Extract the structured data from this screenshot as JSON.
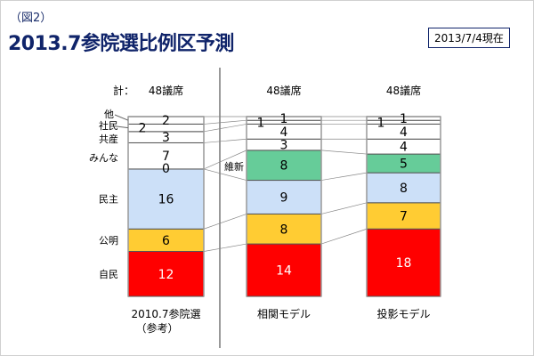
{
  "header": {
    "figure_label": "（図2）",
    "title": "2013.7参院選比例区予測",
    "as_of": "2013/7/4現在"
  },
  "chart_data": {
    "type": "bar",
    "stacked": true,
    "title": "2013.7参院選比例区予測",
    "total_prefix": "計：",
    "categories": [
      "2010.7参院選",
      "相関モデル",
      "投影モデル"
    ],
    "category_sublabels": [
      "（参考）",
      "",
      ""
    ],
    "totals": [
      "48議席",
      "48議席",
      "48議席"
    ],
    "ylim": [
      0,
      48
    ],
    "grid": false,
    "series": [
      {
        "name": "自民",
        "color": "#ff0000",
        "label_color": "#ffffff",
        "values": [
          12,
          14,
          18
        ]
      },
      {
        "name": "公明",
        "color": "#ffcc33",
        "label_color": "#000000",
        "values": [
          6,
          8,
          7
        ]
      },
      {
        "name": "民主",
        "color": "#cce0f8",
        "label_color": "#000000",
        "values": [
          16,
          9,
          8
        ]
      },
      {
        "name": "維新",
        "color": "#66cc99",
        "label_color": "#000000",
        "values": [
          0,
          8,
          5
        ]
      },
      {
        "name": "みんな",
        "color": "#ffffff",
        "label_color": "#000000",
        "values": [
          7,
          3,
          4
        ]
      },
      {
        "name": "共産",
        "color": "#ffffff",
        "label_color": "#000000",
        "values": [
          3,
          4,
          4
        ]
      },
      {
        "name": "社民",
        "color": "#ffffff",
        "label_color": "#000000",
        "values": [
          2,
          1,
          1
        ]
      },
      {
        "name": "他",
        "color": "#ffffff",
        "label_color": "#000000",
        "values": [
          2,
          1,
          1
        ]
      }
    ]
  }
}
